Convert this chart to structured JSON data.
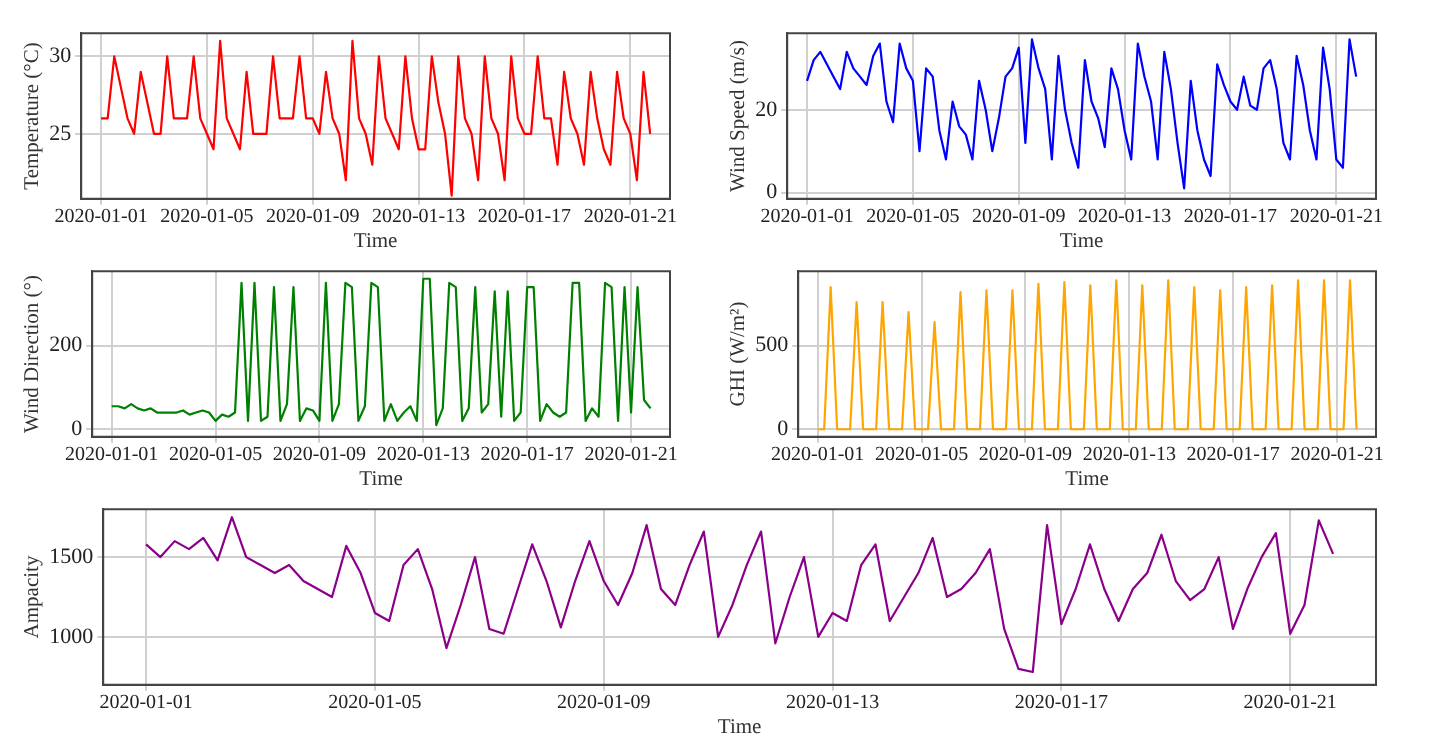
{
  "chart_data": [
    {
      "type": "line",
      "xlabel": "Time",
      "ylabel": "Temperature (°C)",
      "xlim": [
        "2019-12-31T06:00",
        "2020-01-22T12:00"
      ],
      "ylim": [
        20.8,
        31.5
      ],
      "xticks": [
        "2020-01-01",
        "2020-01-05",
        "2020-01-09",
        "2020-01-13",
        "2020-01-17",
        "2020-01-21"
      ],
      "yticks": [
        25,
        30
      ],
      "grid": true,
      "legend": false,
      "marker": "none",
      "line_style": "solid",
      "x": [
        "2020-01-01T00:00",
        "2020-01-01T06:00",
        "2020-01-01T12:00",
        "2020-01-01T18:00",
        "2020-01-02T00:00",
        "2020-01-02T06:00",
        "2020-01-02T12:00",
        "2020-01-02T18:00",
        "2020-01-03T00:00",
        "2020-01-03T06:00",
        "2020-01-03T12:00",
        "2020-01-03T18:00",
        "2020-01-04T00:00",
        "2020-01-04T06:00",
        "2020-01-04T12:00",
        "2020-01-04T18:00",
        "2020-01-05T00:00",
        "2020-01-05T06:00",
        "2020-01-05T12:00",
        "2020-01-05T18:00",
        "2020-01-06T00:00",
        "2020-01-06T06:00",
        "2020-01-06T12:00",
        "2020-01-06T18:00",
        "2020-01-07T00:00",
        "2020-01-07T06:00",
        "2020-01-07T12:00",
        "2020-01-07T18:00",
        "2020-01-08T00:00",
        "2020-01-08T06:00",
        "2020-01-08T12:00",
        "2020-01-08T18:00",
        "2020-01-09T00:00",
        "2020-01-09T06:00",
        "2020-01-09T12:00",
        "2020-01-09T18:00",
        "2020-01-10T00:00",
        "2020-01-10T06:00",
        "2020-01-10T12:00",
        "2020-01-10T18:00",
        "2020-01-11T00:00",
        "2020-01-11T06:00",
        "2020-01-11T12:00",
        "2020-01-11T18:00",
        "2020-01-12T00:00",
        "2020-01-12T06:00",
        "2020-01-12T12:00",
        "2020-01-12T18:00",
        "2020-01-13T00:00",
        "2020-01-13T06:00",
        "2020-01-13T12:00",
        "2020-01-13T18:00",
        "2020-01-14T00:00",
        "2020-01-14T06:00",
        "2020-01-14T12:00",
        "2020-01-14T18:00",
        "2020-01-15T00:00",
        "2020-01-15T06:00",
        "2020-01-15T12:00",
        "2020-01-15T18:00",
        "2020-01-16T00:00",
        "2020-01-16T06:00",
        "2020-01-16T12:00",
        "2020-01-16T18:00",
        "2020-01-17T00:00",
        "2020-01-17T06:00",
        "2020-01-17T12:00",
        "2020-01-17T18:00",
        "2020-01-18T00:00",
        "2020-01-18T06:00",
        "2020-01-18T12:00",
        "2020-01-18T18:00",
        "2020-01-19T00:00",
        "2020-01-19T06:00",
        "2020-01-19T12:00",
        "2020-01-19T18:00",
        "2020-01-20T00:00",
        "2020-01-20T06:00",
        "2020-01-20T12:00",
        "2020-01-20T18:00",
        "2020-01-21T00:00",
        "2020-01-21T06:00",
        "2020-01-21T12:00",
        "2020-01-21T18:00"
      ],
      "series": [
        {
          "color": "#ff0000",
          "values": [
            26,
            26,
            30,
            28,
            26,
            25,
            29,
            27,
            25,
            25,
            30,
            26,
            26,
            26,
            30,
            26,
            25,
            24,
            31,
            26,
            25,
            24,
            29,
            25,
            25,
            25,
            30,
            26,
            26,
            26,
            30,
            26,
            26,
            25,
            29,
            26,
            25,
            22,
            31,
            26,
            25,
            23,
            30,
            26,
            25,
            24,
            30,
            26,
            24,
            24,
            30,
            27,
            25,
            21,
            30,
            26,
            25,
            22,
            30,
            26,
            25,
            22,
            30,
            26,
            25,
            25,
            30,
            26,
            26,
            23,
            29,
            26,
            25,
            23,
            29,
            26,
            24,
            23,
            29,
            26,
            25,
            22,
            29,
            25
          ]
        }
      ]
    },
    {
      "type": "line",
      "xlabel": "Time",
      "ylabel": "Wind Speed (m/s)",
      "xlim": [
        "2019-12-31T06:00",
        "2020-01-22T12:00"
      ],
      "ylim": [
        -1.5,
        38.5
      ],
      "xticks": [
        "2020-01-01",
        "2020-01-05",
        "2020-01-09",
        "2020-01-13",
        "2020-01-17",
        "2020-01-21"
      ],
      "yticks": [
        0,
        20
      ],
      "grid": true,
      "legend": false,
      "marker": "none",
      "line_style": "solid",
      "x": [
        "2020-01-01T00:00",
        "2020-01-01T06:00",
        "2020-01-01T12:00",
        "2020-01-01T18:00",
        "2020-01-02T00:00",
        "2020-01-02T06:00",
        "2020-01-02T12:00",
        "2020-01-02T18:00",
        "2020-01-03T00:00",
        "2020-01-03T06:00",
        "2020-01-03T12:00",
        "2020-01-03T18:00",
        "2020-01-04T00:00",
        "2020-01-04T06:00",
        "2020-01-04T12:00",
        "2020-01-04T18:00",
        "2020-01-05T00:00",
        "2020-01-05T06:00",
        "2020-01-05T12:00",
        "2020-01-05T18:00",
        "2020-01-06T00:00",
        "2020-01-06T06:00",
        "2020-01-06T12:00",
        "2020-01-06T18:00",
        "2020-01-07T00:00",
        "2020-01-07T06:00",
        "2020-01-07T12:00",
        "2020-01-07T18:00",
        "2020-01-08T00:00",
        "2020-01-08T06:00",
        "2020-01-08T12:00",
        "2020-01-08T18:00",
        "2020-01-09T00:00",
        "2020-01-09T06:00",
        "2020-01-09T12:00",
        "2020-01-09T18:00",
        "2020-01-10T00:00",
        "2020-01-10T06:00",
        "2020-01-10T12:00",
        "2020-01-10T18:00",
        "2020-01-11T00:00",
        "2020-01-11T06:00",
        "2020-01-11T12:00",
        "2020-01-11T18:00",
        "2020-01-12T00:00",
        "2020-01-12T06:00",
        "2020-01-12T12:00",
        "2020-01-12T18:00",
        "2020-01-13T00:00",
        "2020-01-13T06:00",
        "2020-01-13T12:00",
        "2020-01-13T18:00",
        "2020-01-14T00:00",
        "2020-01-14T06:00",
        "2020-01-14T12:00",
        "2020-01-14T18:00",
        "2020-01-15T00:00",
        "2020-01-15T06:00",
        "2020-01-15T12:00",
        "2020-01-15T18:00",
        "2020-01-16T00:00",
        "2020-01-16T06:00",
        "2020-01-16T12:00",
        "2020-01-16T18:00",
        "2020-01-17T00:00",
        "2020-01-17T06:00",
        "2020-01-17T12:00",
        "2020-01-17T18:00",
        "2020-01-18T00:00",
        "2020-01-18T06:00",
        "2020-01-18T12:00",
        "2020-01-18T18:00",
        "2020-01-19T00:00",
        "2020-01-19T06:00",
        "2020-01-19T12:00",
        "2020-01-19T18:00",
        "2020-01-20T00:00",
        "2020-01-20T06:00",
        "2020-01-20T12:00",
        "2020-01-20T18:00",
        "2020-01-21T00:00",
        "2020-01-21T06:00",
        "2020-01-21T12:00",
        "2020-01-21T18:00"
      ],
      "series": [
        {
          "color": "#0000ff",
          "values": [
            27,
            32,
            34,
            31,
            28,
            25,
            34,
            30,
            28,
            26,
            33,
            36,
            22,
            17,
            36,
            30,
            27,
            10,
            30,
            28,
            15,
            8,
            22,
            16,
            14,
            8,
            27,
            20,
            10,
            18,
            28,
            30,
            35,
            12,
            37,
            30,
            25,
            8,
            33,
            20,
            12,
            6,
            32,
            22,
            18,
            11,
            30,
            25,
            15,
            8,
            36,
            28,
            22,
            8,
            34,
            25,
            12,
            1,
            27,
            15,
            8,
            4,
            31,
            26,
            22,
            20,
            28,
            21,
            20,
            30,
            32,
            25,
            12,
            8,
            33,
            26,
            15,
            8,
            35,
            25,
            8,
            6,
            37,
            28
          ]
        }
      ]
    },
    {
      "type": "line",
      "xlabel": "Time",
      "ylabel": "Wind Direction (°)",
      "xlim": [
        "2019-12-31T06:00",
        "2020-01-22T12:00"
      ],
      "ylim": [
        -18,
        378
      ],
      "xticks": [
        "2020-01-01",
        "2020-01-05",
        "2020-01-09",
        "2020-01-13",
        "2020-01-17",
        "2020-01-21"
      ],
      "yticks": [
        0,
        200
      ],
      "grid": true,
      "legend": false,
      "marker": "none",
      "line_style": "solid",
      "x": [
        "2020-01-01T00:00",
        "2020-01-01T06:00",
        "2020-01-01T12:00",
        "2020-01-01T18:00",
        "2020-01-02T00:00",
        "2020-01-02T06:00",
        "2020-01-02T12:00",
        "2020-01-02T18:00",
        "2020-01-03T00:00",
        "2020-01-03T06:00",
        "2020-01-03T12:00",
        "2020-01-03T18:00",
        "2020-01-04T00:00",
        "2020-01-04T06:00",
        "2020-01-04T12:00",
        "2020-01-04T18:00",
        "2020-01-05T00:00",
        "2020-01-05T06:00",
        "2020-01-05T12:00",
        "2020-01-05T18:00",
        "2020-01-06T00:00",
        "2020-01-06T06:00",
        "2020-01-06T12:00",
        "2020-01-06T18:00",
        "2020-01-07T00:00",
        "2020-01-07T06:00",
        "2020-01-07T12:00",
        "2020-01-07T18:00",
        "2020-01-08T00:00",
        "2020-01-08T06:00",
        "2020-01-08T12:00",
        "2020-01-08T18:00",
        "2020-01-09T00:00",
        "2020-01-09T06:00",
        "2020-01-09T12:00",
        "2020-01-09T18:00",
        "2020-01-10T00:00",
        "2020-01-10T06:00",
        "2020-01-10T12:00",
        "2020-01-10T18:00",
        "2020-01-11T00:00",
        "2020-01-11T06:00",
        "2020-01-11T12:00",
        "2020-01-11T18:00",
        "2020-01-12T00:00",
        "2020-01-12T06:00",
        "2020-01-12T12:00",
        "2020-01-12T18:00",
        "2020-01-13T00:00",
        "2020-01-13T06:00",
        "2020-01-13T12:00",
        "2020-01-13T18:00",
        "2020-01-14T00:00",
        "2020-01-14T06:00",
        "2020-01-14T12:00",
        "2020-01-14T18:00",
        "2020-01-15T00:00",
        "2020-01-15T06:00",
        "2020-01-15T12:00",
        "2020-01-15T18:00",
        "2020-01-16T00:00",
        "2020-01-16T06:00",
        "2020-01-16T12:00",
        "2020-01-16T18:00",
        "2020-01-17T00:00",
        "2020-01-17T06:00",
        "2020-01-17T12:00",
        "2020-01-17T18:00",
        "2020-01-18T00:00",
        "2020-01-18T06:00",
        "2020-01-18T12:00",
        "2020-01-18T18:00",
        "2020-01-19T00:00",
        "2020-01-19T06:00",
        "2020-01-19T12:00",
        "2020-01-19T18:00",
        "2020-01-20T00:00",
        "2020-01-20T06:00",
        "2020-01-20T12:00",
        "2020-01-20T18:00",
        "2020-01-21T00:00",
        "2020-01-21T06:00",
        "2020-01-21T12:00",
        "2020-01-21T18:00"
      ],
      "series": [
        {
          "color": "#008000",
          "values": [
            55,
            55,
            50,
            60,
            50,
            45,
            50,
            40,
            40,
            40,
            40,
            45,
            35,
            40,
            45,
            40,
            20,
            35,
            30,
            40,
            350,
            20,
            350,
            20,
            30,
            340,
            20,
            60,
            340,
            20,
            50,
            45,
            20,
            350,
            20,
            60,
            350,
            340,
            20,
            55,
            350,
            340,
            20,
            60,
            20,
            40,
            55,
            20,
            360,
            360,
            10,
            50,
            350,
            340,
            20,
            50,
            340,
            40,
            60,
            330,
            30,
            330,
            20,
            40,
            340,
            340,
            20,
            60,
            40,
            30,
            40,
            350,
            350,
            20,
            50,
            30,
            350,
            340,
            20,
            340,
            40,
            340,
            70,
            50
          ]
        }
      ]
    },
    {
      "type": "line",
      "xlabel": "Time",
      "ylabel": "GHI (W/m²)",
      "xlim": [
        "2019-12-31T06:00",
        "2020-01-22T12:00"
      ],
      "ylim": [
        -45,
        945
      ],
      "xticks": [
        "2020-01-01",
        "2020-01-05",
        "2020-01-09",
        "2020-01-13",
        "2020-01-17",
        "2020-01-21"
      ],
      "yticks": [
        0,
        500
      ],
      "grid": true,
      "legend": false,
      "marker": "none",
      "line_style": "solid",
      "x": [
        "2020-01-01T00:00",
        "2020-01-01T06:00",
        "2020-01-01T12:00",
        "2020-01-01T18:00",
        "2020-01-02T00:00",
        "2020-01-02T06:00",
        "2020-01-02T12:00",
        "2020-01-02T18:00",
        "2020-01-03T00:00",
        "2020-01-03T06:00",
        "2020-01-03T12:00",
        "2020-01-03T18:00",
        "2020-01-04T00:00",
        "2020-01-04T06:00",
        "2020-01-04T12:00",
        "2020-01-04T18:00",
        "2020-01-05T00:00",
        "2020-01-05T06:00",
        "2020-01-05T12:00",
        "2020-01-05T18:00",
        "2020-01-06T00:00",
        "2020-01-06T06:00",
        "2020-01-06T12:00",
        "2020-01-06T18:00",
        "2020-01-07T00:00",
        "2020-01-07T06:00",
        "2020-01-07T12:00",
        "2020-01-07T18:00",
        "2020-01-08T00:00",
        "2020-01-08T06:00",
        "2020-01-08T12:00",
        "2020-01-08T18:00",
        "2020-01-09T00:00",
        "2020-01-09T06:00",
        "2020-01-09T12:00",
        "2020-01-09T18:00",
        "2020-01-10T00:00",
        "2020-01-10T06:00",
        "2020-01-10T12:00",
        "2020-01-10T18:00",
        "2020-01-11T00:00",
        "2020-01-11T06:00",
        "2020-01-11T12:00",
        "2020-01-11T18:00",
        "2020-01-12T00:00",
        "2020-01-12T06:00",
        "2020-01-12T12:00",
        "2020-01-12T18:00",
        "2020-01-13T00:00",
        "2020-01-13T06:00",
        "2020-01-13T12:00",
        "2020-01-13T18:00",
        "2020-01-14T00:00",
        "2020-01-14T06:00",
        "2020-01-14T12:00",
        "2020-01-14T18:00",
        "2020-01-15T00:00",
        "2020-01-15T06:00",
        "2020-01-15T12:00",
        "2020-01-15T18:00",
        "2020-01-16T00:00",
        "2020-01-16T06:00",
        "2020-01-16T12:00",
        "2020-01-16T18:00",
        "2020-01-17T00:00",
        "2020-01-17T06:00",
        "2020-01-17T12:00",
        "2020-01-17T18:00",
        "2020-01-18T00:00",
        "2020-01-18T06:00",
        "2020-01-18T12:00",
        "2020-01-18T18:00",
        "2020-01-19T00:00",
        "2020-01-19T06:00",
        "2020-01-19T12:00",
        "2020-01-19T18:00",
        "2020-01-20T00:00",
        "2020-01-20T06:00",
        "2020-01-20T12:00",
        "2020-01-20T18:00",
        "2020-01-21T00:00",
        "2020-01-21T06:00",
        "2020-01-21T12:00",
        "2020-01-21T18:00"
      ],
      "series": [
        {
          "color": "#ffa500",
          "values": [
            0,
            0,
            850,
            0,
            0,
            0,
            760,
            0,
            0,
            0,
            760,
            0,
            0,
            0,
            700,
            0,
            0,
            0,
            640,
            0,
            0,
            0,
            820,
            0,
            0,
            0,
            830,
            0,
            0,
            0,
            830,
            0,
            0,
            0,
            870,
            0,
            0,
            0,
            880,
            0,
            0,
            0,
            860,
            0,
            0,
            0,
            890,
            0,
            0,
            0,
            860,
            0,
            0,
            0,
            890,
            0,
            0,
            0,
            850,
            0,
            0,
            0,
            830,
            0,
            0,
            0,
            850,
            0,
            0,
            0,
            860,
            0,
            0,
            0,
            890,
            0,
            0,
            0,
            890,
            0,
            0,
            0,
            890,
            0
          ]
        }
      ]
    },
    {
      "type": "line",
      "xlabel": "Time",
      "ylabel": "Ampacity",
      "xlim": [
        "2019-12-31T06:00",
        "2020-01-22T12:00"
      ],
      "ylim": [
        700,
        1800
      ],
      "xticks": [
        "2020-01-01",
        "2020-01-05",
        "2020-01-09",
        "2020-01-13",
        "2020-01-17",
        "2020-01-21"
      ],
      "yticks": [
        1000,
        1500
      ],
      "grid": true,
      "legend": false,
      "marker": "none",
      "line_style": "solid",
      "x": [
        "2020-01-01T00:00",
        "2020-01-01T06:00",
        "2020-01-01T12:00",
        "2020-01-01T18:00",
        "2020-01-02T00:00",
        "2020-01-02T06:00",
        "2020-01-02T12:00",
        "2020-01-02T18:00",
        "2020-01-03T00:00",
        "2020-01-03T06:00",
        "2020-01-03T12:00",
        "2020-01-03T18:00",
        "2020-01-04T00:00",
        "2020-01-04T06:00",
        "2020-01-04T12:00",
        "2020-01-04T18:00",
        "2020-01-05T00:00",
        "2020-01-05T06:00",
        "2020-01-05T12:00",
        "2020-01-05T18:00",
        "2020-01-06T00:00",
        "2020-01-06T06:00",
        "2020-01-06T12:00",
        "2020-01-06T18:00",
        "2020-01-07T00:00",
        "2020-01-07T06:00",
        "2020-01-07T12:00",
        "2020-01-07T18:00",
        "2020-01-08T00:00",
        "2020-01-08T06:00",
        "2020-01-08T12:00",
        "2020-01-08T18:00",
        "2020-01-09T00:00",
        "2020-01-09T06:00",
        "2020-01-09T12:00",
        "2020-01-09T18:00",
        "2020-01-10T00:00",
        "2020-01-10T06:00",
        "2020-01-10T12:00",
        "2020-01-10T18:00",
        "2020-01-11T00:00",
        "2020-01-11T06:00",
        "2020-01-11T12:00",
        "2020-01-11T18:00",
        "2020-01-12T00:00",
        "2020-01-12T06:00",
        "2020-01-12T12:00",
        "2020-01-12T18:00",
        "2020-01-13T00:00",
        "2020-01-13T06:00",
        "2020-01-13T12:00",
        "2020-01-13T18:00",
        "2020-01-14T00:00",
        "2020-01-14T06:00",
        "2020-01-14T12:00",
        "2020-01-14T18:00",
        "2020-01-15T00:00",
        "2020-01-15T06:00",
        "2020-01-15T12:00",
        "2020-01-15T18:00",
        "2020-01-16T00:00",
        "2020-01-16T06:00",
        "2020-01-16T12:00",
        "2020-01-16T18:00",
        "2020-01-17T00:00",
        "2020-01-17T06:00",
        "2020-01-17T12:00",
        "2020-01-17T18:00",
        "2020-01-18T00:00",
        "2020-01-18T06:00",
        "2020-01-18T12:00",
        "2020-01-18T18:00",
        "2020-01-19T00:00",
        "2020-01-19T06:00",
        "2020-01-19T12:00",
        "2020-01-19T18:00",
        "2020-01-20T00:00",
        "2020-01-20T06:00",
        "2020-01-20T12:00",
        "2020-01-20T18:00",
        "2020-01-21T00:00",
        "2020-01-21T06:00",
        "2020-01-21T12:00",
        "2020-01-21T18:00"
      ],
      "series": [
        {
          "color": "#8b008b",
          "values": [
            1580,
            1500,
            1600,
            1550,
            1620,
            1480,
            1750,
            1500,
            1450,
            1400,
            1450,
            1350,
            1300,
            1250,
            1570,
            1400,
            1150,
            1100,
            1450,
            1550,
            1300,
            930,
            1200,
            1500,
            1050,
            1020,
            1300,
            1580,
            1350,
            1060,
            1350,
            1600,
            1350,
            1200,
            1400,
            1700,
            1300,
            1200,
            1450,
            1660,
            1000,
            1200,
            1450,
            1660,
            960,
            1250,
            1500,
            1000,
            1150,
            1100,
            1450,
            1580,
            1100,
            1250,
            1400,
            1620,
            1250,
            1300,
            1400,
            1550,
            1050,
            800,
            780,
            1700,
            1080,
            1300,
            1580,
            1300,
            1100,
            1300,
            1400,
            1640,
            1350,
            1230,
            1300,
            1500,
            1050,
            1300,
            1500,
            1650,
            1020,
            1200,
            1730,
            1520
          ]
        }
      ]
    }
  ]
}
